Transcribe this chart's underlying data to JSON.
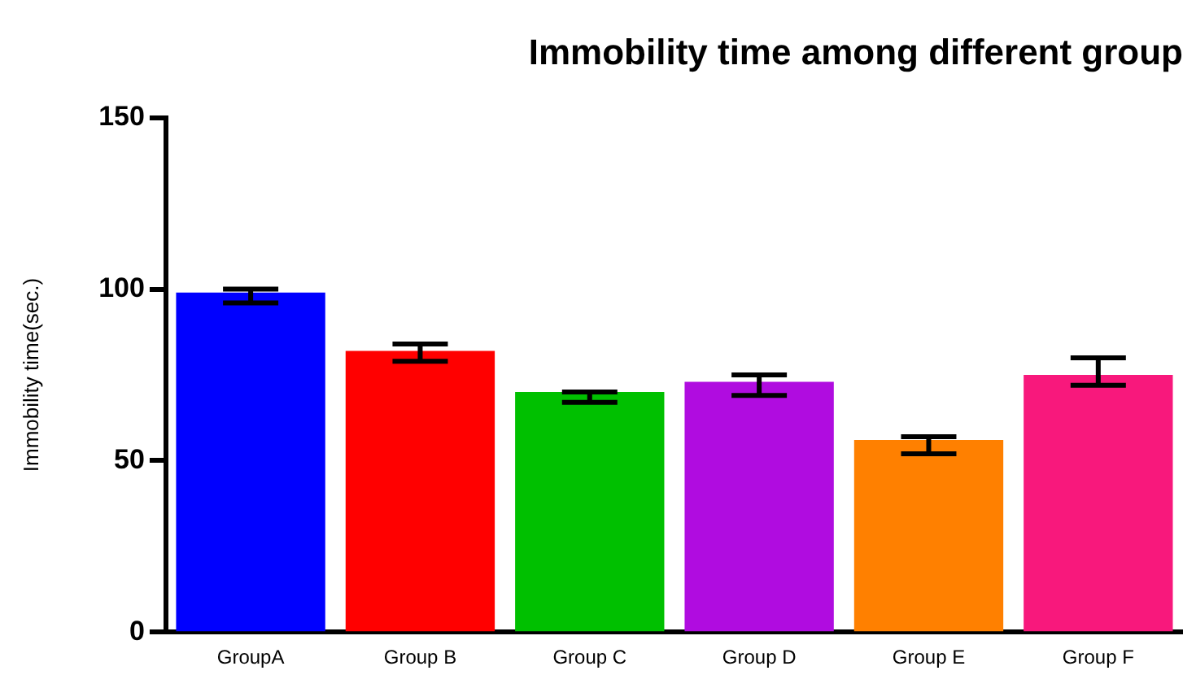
{
  "chart_data": {
    "type": "bar",
    "title": "Immobility time among different group",
    "ylabel": "Immobility time(sec.)",
    "categories": [
      "GroupA",
      "Group B",
      "Group C",
      "Group D",
      "Group E",
      "Group F"
    ],
    "values": [
      99,
      82,
      70,
      73,
      56,
      75
    ],
    "colors": [
      "#0000ff",
      "#ff0000",
      "#00c000",
      "#b00ce0",
      "#ff8000",
      "#f8187c"
    ],
    "errors": [
      [
        96,
        100
      ],
      [
        79,
        84
      ],
      [
        67,
        70
      ],
      [
        69,
        75
      ],
      [
        52,
        57
      ],
      [
        72,
        80
      ]
    ],
    "ylim": [
      0,
      150
    ],
    "yticks": [
      0,
      50,
      100,
      150
    ],
    "grid": false,
    "legend": false
  }
}
